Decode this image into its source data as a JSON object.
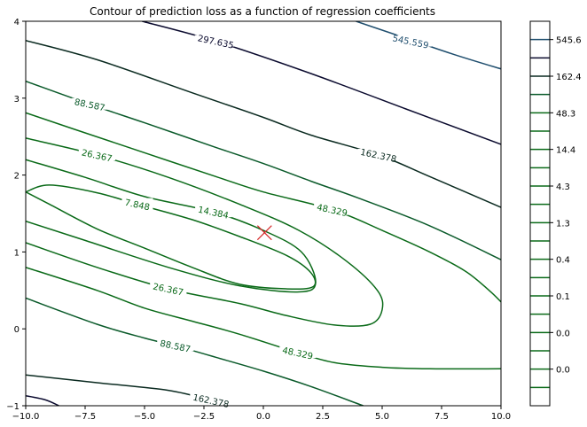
{
  "chart_data": {
    "type": "contour",
    "title": "Contour of prediction loss as a function of regression coefficients",
    "xlabel": "",
    "ylabel": "",
    "xlim": [
      -10,
      10
    ],
    "ylim": [
      -1,
      4
    ],
    "x_ticks": [
      -10.0,
      -7.5,
      -5.0,
      -2.5,
      0.0,
      2.5,
      5.0,
      7.5,
      10.0
    ],
    "x_tick_labels": [
      "−10.0",
      "−7.5",
      "−5.0",
      "−2.5",
      "0.0",
      "2.5",
      "5.0",
      "7.5",
      "10.0"
    ],
    "y_ticks": [
      -1,
      0,
      1,
      2,
      3,
      4
    ],
    "y_tick_labels": [
      "−1",
      "0",
      "1",
      "2",
      "3",
      "4"
    ],
    "grid": false,
    "minimum_marker": {
      "x": 0.05,
      "y": 1.25,
      "symbol": "x",
      "color": "#d62728"
    },
    "contour_labels": [
      {
        "text": "297.635",
        "x": -2.0,
        "y": 3.74,
        "color": "#0a0a2e"
      },
      {
        "text": "545.559",
        "x": 6.2,
        "y": 3.74,
        "color": "#1f4e6e"
      },
      {
        "text": "88.587",
        "x": -7.3,
        "y": 2.92,
        "color": "#0a5a2a"
      },
      {
        "text": "162.378",
        "x": 4.85,
        "y": 2.26,
        "color": "#0a2a20"
      },
      {
        "text": "26.367",
        "x": -7.0,
        "y": 2.26,
        "color": "#0a6a18"
      },
      {
        "text": "48.329",
        "x": 2.9,
        "y": 1.55,
        "color": "#0a6a18"
      },
      {
        "text": "7.848",
        "x": -5.3,
        "y": 1.62,
        "color": "#0a6a18"
      },
      {
        "text": "14.384",
        "x": -2.1,
        "y": 1.52,
        "color": "#0a6a18"
      },
      {
        "text": "26.367",
        "x": -4.0,
        "y": 0.52,
        "color": "#0a6a18"
      },
      {
        "text": "88.587",
        "x": -3.7,
        "y": -0.22,
        "color": "#0a5a2a"
      },
      {
        "text": "48.329",
        "x": 1.45,
        "y": -0.31,
        "color": "#0a6a18"
      },
      {
        "text": "162.378",
        "x": -2.2,
        "y": -0.93,
        "color": "#0a2a20"
      }
    ],
    "colorbar": {
      "tick_labels": [
        "545.6",
        "162.4",
        "48.3",
        "14.4",
        "4.3",
        "1.3",
        "0.4",
        "0.1",
        "0.0",
        "0.0"
      ],
      "levels": [
        {
          "color": "#1f4e6e"
        },
        {
          "color": "#0a0a2e"
        },
        {
          "color": "#0a2a20"
        },
        {
          "color": "#0a5a2a"
        },
        {
          "color": "#0a6a18"
        },
        {
          "color": "#0a6a18"
        },
        {
          "color": "#0a6a18"
        },
        {
          "color": "#0a6a18"
        },
        {
          "color": "#0a6a18"
        },
        {
          "color": "#0a6a18"
        },
        {
          "color": "#0a6a18"
        },
        {
          "color": "#0a6a18"
        },
        {
          "color": "#0a6a18"
        },
        {
          "color": "#0a6a18"
        },
        {
          "color": "#0a6a18"
        },
        {
          "color": "#0a6a18"
        },
        {
          "color": "#0a6a18"
        },
        {
          "color": "#0a6a18"
        },
        {
          "color": "#0a6a18"
        },
        {
          "color": "#0a6a18"
        }
      ]
    },
    "contour_lines": [
      {
        "color": "#1f4e6e",
        "points": [
          [
            3.9,
            4.0
          ],
          [
            6.0,
            3.78
          ],
          [
            8.0,
            3.57
          ],
          [
            10.0,
            3.38
          ]
        ]
      },
      {
        "color": "#0a0a2e",
        "points": [
          [
            -5.1,
            4.0
          ],
          [
            -2.0,
            3.74
          ],
          [
            2.0,
            3.32
          ],
          [
            6.0,
            2.86
          ],
          [
            10.0,
            2.4
          ]
        ]
      },
      {
        "color": "#0a0a2e",
        "points": [
          [
            -10.0,
            -0.87
          ],
          [
            -9.2,
            -0.92
          ],
          [
            -8.6,
            -1.0
          ]
        ]
      },
      {
        "color": "#0a2a20",
        "points": [
          [
            -10.0,
            3.75
          ],
          [
            -7.0,
            3.5
          ],
          [
            -3.0,
            3.07
          ],
          [
            0.0,
            2.75
          ],
          [
            2.0,
            2.52
          ],
          [
            4.85,
            2.26
          ],
          [
            7.0,
            1.98
          ],
          [
            10.0,
            1.58
          ]
        ]
      },
      {
        "color": "#0a2a20",
        "points": [
          [
            -10.0,
            -0.6
          ],
          [
            -7.0,
            -0.7
          ],
          [
            -4.0,
            -0.8
          ],
          [
            -2.2,
            -0.93
          ],
          [
            -1.5,
            -1.0
          ]
        ]
      },
      {
        "color": "#0a5a2a",
        "points": [
          [
            -10.0,
            3.22
          ],
          [
            -7.3,
            2.92
          ],
          [
            -5.0,
            2.68
          ],
          [
            -2.0,
            2.36
          ],
          [
            0.0,
            2.15
          ],
          [
            2.0,
            1.92
          ],
          [
            4.0,
            1.7
          ],
          [
            7.0,
            1.34
          ],
          [
            10.0,
            0.9
          ]
        ]
      },
      {
        "color": "#0a5a2a",
        "points": [
          [
            -10.0,
            0.4
          ],
          [
            -7.0,
            0.06
          ],
          [
            -5.0,
            -0.12
          ],
          [
            -3.7,
            -0.22
          ],
          [
            -2.0,
            -0.37
          ],
          [
            0.0,
            -0.55
          ],
          [
            2.0,
            -0.75
          ],
          [
            4.2,
            -1.0
          ]
        ]
      },
      {
        "color": "#0a6a18",
        "points": [
          [
            -10.0,
            2.81
          ],
          [
            -8.0,
            2.6
          ],
          [
            -5.0,
            2.29
          ],
          [
            -2.0,
            1.98
          ],
          [
            0.0,
            1.78
          ],
          [
            2.9,
            1.55
          ],
          [
            5.0,
            1.28
          ],
          [
            7.0,
            1.0
          ],
          [
            8.5,
            0.75
          ],
          [
            9.5,
            0.5
          ],
          [
            10.0,
            0.35
          ]
        ]
      },
      {
        "color": "#0a6a18",
        "points": [
          [
            -10.0,
            0.8
          ],
          [
            -7.0,
            0.5
          ],
          [
            -5.0,
            0.27
          ],
          [
            -3.0,
            0.1
          ],
          [
            -1.0,
            -0.07
          ],
          [
            1.45,
            -0.31
          ],
          [
            3.0,
            -0.44
          ],
          [
            5.0,
            -0.5
          ],
          [
            7.0,
            -0.52
          ],
          [
            10.0,
            -0.52
          ]
        ]
      },
      {
        "color": "#0a6a18",
        "points": [
          [
            -10.0,
            2.48
          ],
          [
            -7.0,
            2.26
          ],
          [
            -4.0,
            1.97
          ],
          [
            -1.0,
            1.62
          ],
          [
            1.5,
            1.28
          ],
          [
            3.5,
            0.88
          ],
          [
            4.8,
            0.5
          ],
          [
            5.0,
            0.25
          ],
          [
            4.5,
            0.06
          ],
          [
            3.0,
            0.05
          ],
          [
            1.0,
            0.17
          ],
          [
            -1.0,
            0.33
          ],
          [
            -4.0,
            0.52
          ],
          [
            -7.0,
            0.8
          ],
          [
            -10.0,
            1.12
          ]
        ]
      },
      {
        "color": "#0a6a18",
        "points": [
          [
            -10.0,
            2.2
          ],
          [
            -7.5,
            1.97
          ],
          [
            -5.0,
            1.72
          ],
          [
            -2.1,
            1.52
          ],
          [
            0.0,
            1.28
          ],
          [
            1.6,
            1.0
          ],
          [
            2.2,
            0.6
          ],
          [
            1.5,
            0.48
          ],
          [
            -1.0,
            0.56
          ],
          [
            -4.0,
            0.8
          ],
          [
            -7.5,
            1.15
          ],
          [
            -10.0,
            1.4
          ]
        ]
      },
      {
        "color": "#0a6a18",
        "points": [
          [
            -10.0,
            1.78
          ],
          [
            -9.0,
            1.87
          ],
          [
            -7.0,
            1.77
          ],
          [
            -5.3,
            1.62
          ],
          [
            -3.0,
            1.42
          ],
          [
            -1.0,
            1.2
          ],
          [
            1.0,
            0.95
          ],
          [
            2.0,
            0.73
          ],
          [
            2.1,
            0.55
          ],
          [
            1.0,
            0.52
          ],
          [
            -1.0,
            0.58
          ],
          [
            -3.0,
            0.8
          ],
          [
            -5.0,
            1.05
          ],
          [
            -7.0,
            1.3
          ],
          [
            -9.0,
            1.62
          ],
          [
            -10.0,
            1.78
          ]
        ]
      }
    ]
  }
}
